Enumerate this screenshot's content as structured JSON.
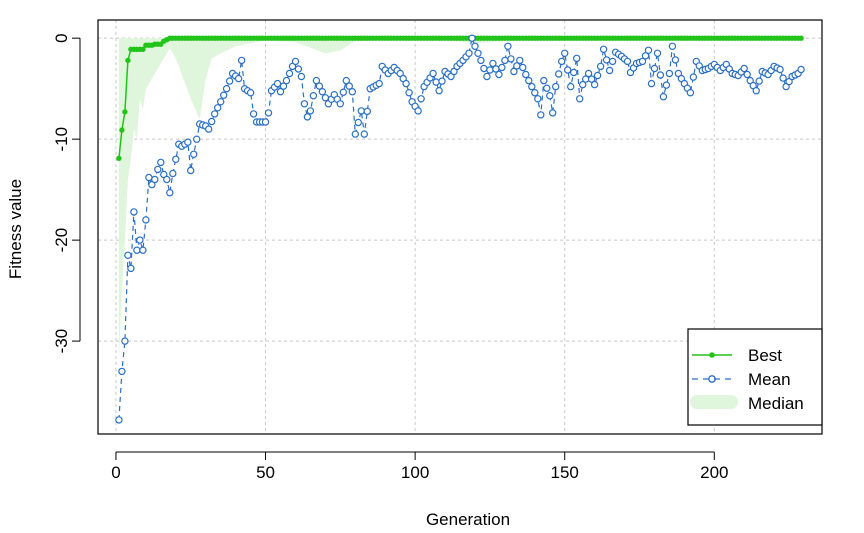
{
  "chart_data": {
    "type": "line",
    "xlabel": "Generation",
    "ylabel": "Fitness value",
    "xlim": [
      -6,
      236
    ],
    "ylim": [
      -39.2,
      1.8
    ],
    "xticks": [
      0,
      50,
      100,
      150,
      200
    ],
    "yticks": [
      0,
      -10,
      -20,
      -30
    ],
    "grid": true,
    "legend_position": "bottom-right",
    "colors": {
      "best": "#22c41a",
      "mean": "#2a6fc4",
      "median": "#dff5dc"
    },
    "legend": [
      {
        "key": "best",
        "label": "Best"
      },
      {
        "key": "mean",
        "label": "Mean"
      },
      {
        "key": "median",
        "label": "Median"
      }
    ],
    "best_anchors": [
      [
        1,
        -11.9
      ],
      [
        2,
        -9.1
      ],
      [
        3,
        -7.3
      ],
      [
        4,
        -2.2
      ],
      [
        5,
        -1.1
      ],
      [
        6,
        -1.1
      ],
      [
        7,
        -1.1
      ],
      [
        8,
        -1.1
      ],
      [
        9,
        -1.1
      ],
      [
        10,
        -0.7
      ],
      [
        11,
        -0.7
      ],
      [
        12,
        -0.7
      ],
      [
        13,
        -0.6
      ],
      [
        14,
        -0.6
      ],
      [
        15,
        -0.6
      ],
      [
        16,
        -0.3
      ],
      [
        17,
        -0.15
      ],
      [
        18,
        0
      ],
      [
        229,
        0
      ]
    ],
    "median_anchors": [
      [
        1,
        -32
      ],
      [
        2,
        -25
      ],
      [
        3,
        -20
      ],
      [
        4,
        -14
      ],
      [
        5,
        -12
      ],
      [
        6,
        -9
      ],
      [
        7,
        -10
      ],
      [
        8,
        -6
      ],
      [
        9,
        -7
      ],
      [
        10,
        -5
      ],
      [
        12,
        -4
      ],
      [
        14,
        -3
      ],
      [
        16,
        -2
      ],
      [
        18,
        -1
      ],
      [
        20,
        -2
      ],
      [
        25,
        -6
      ],
      [
        28,
        -8
      ],
      [
        30,
        -4
      ],
      [
        32,
        -2
      ],
      [
        35,
        -1.5
      ],
      [
        40,
        -0.8
      ],
      [
        45,
        -0.5
      ],
      [
        50,
        -0.2
      ],
      [
        60,
        -0.4
      ],
      [
        70,
        -1.5
      ],
      [
        75,
        -1.2
      ],
      [
        80,
        -0.3
      ],
      [
        90,
        -0.2
      ],
      [
        100,
        -0.1
      ],
      [
        110,
        -0.2
      ],
      [
        120,
        -0.5
      ],
      [
        130,
        -0.3
      ],
      [
        140,
        -0.2
      ],
      [
        150,
        0
      ],
      [
        229,
        0
      ]
    ],
    "mean_anchors": [
      [
        1,
        -37.8
      ],
      [
        2,
        -33
      ],
      [
        3,
        -30
      ],
      [
        4,
        -21.5
      ],
      [
        5,
        -22.8
      ],
      [
        6,
        -17.2
      ],
      [
        7,
        -21
      ],
      [
        8,
        -20
      ],
      [
        9,
        -21
      ],
      [
        10,
        -18
      ],
      [
        11,
        -13.8
      ],
      [
        12,
        -14.5
      ],
      [
        13,
        -14
      ],
      [
        14,
        -13
      ],
      [
        15,
        -12.3
      ],
      [
        16,
        -13.5
      ],
      [
        17,
        -14
      ],
      [
        18,
        -15.3
      ],
      [
        19,
        -13.4
      ],
      [
        20,
        -12
      ],
      [
        21,
        -10.5
      ],
      [
        22,
        -10.7
      ],
      [
        23,
        -10.5
      ],
      [
        24,
        -10.3
      ],
      [
        25,
        -13.1
      ],
      [
        26,
        -11.5
      ],
      [
        28,
        -8.5
      ],
      [
        30,
        -8.7
      ],
      [
        31,
        -9
      ],
      [
        33,
        -7.5
      ],
      [
        35,
        -6.3
      ],
      [
        37,
        -5
      ],
      [
        39,
        -3.5
      ],
      [
        41,
        -4
      ],
      [
        42,
        -2.2
      ],
      [
        43,
        -5
      ],
      [
        45,
        -5.4
      ],
      [
        46,
        -7.5
      ],
      [
        47,
        -8.3
      ],
      [
        50,
        -8.3
      ],
      [
        51,
        -7.4
      ],
      [
        52,
        -5.2
      ],
      [
        54,
        -4.5
      ],
      [
        55,
        -5.3
      ],
      [
        57,
        -4.2
      ],
      [
        59,
        -2.8
      ],
      [
        60,
        -2.3
      ],
      [
        62,
        -3.8
      ],
      [
        63,
        -6.5
      ],
      [
        64,
        -7.8
      ],
      [
        65,
        -7.2
      ],
      [
        67,
        -4.2
      ],
      [
        69,
        -5.3
      ],
      [
        71,
        -6.5
      ],
      [
        73,
        -5.6
      ],
      [
        75,
        -6.5
      ],
      [
        77,
        -4.2
      ],
      [
        79,
        -5.3
      ],
      [
        80,
        -9.5
      ],
      [
        82,
        -7.2
      ],
      [
        83,
        -9.5
      ],
      [
        85,
        -5
      ],
      [
        88,
        -4.5
      ],
      [
        89,
        -2.8
      ],
      [
        91,
        -3.5
      ],
      [
        93,
        -2.9
      ],
      [
        95,
        -3.5
      ],
      [
        97,
        -4.5
      ],
      [
        99,
        -6.3
      ],
      [
        101,
        -7.2
      ],
      [
        103,
        -4.8
      ],
      [
        106,
        -3.5
      ],
      [
        108,
        -5.2
      ],
      [
        110,
        -3.3
      ],
      [
        112,
        -3.8
      ],
      [
        114,
        -2.8
      ],
      [
        116,
        -2.2
      ],
      [
        118,
        -1.5
      ],
      [
        119,
        0
      ],
      [
        120,
        -0.8
      ],
      [
        122,
        -2.2
      ],
      [
        124,
        -3.8
      ],
      [
        126,
        -2.5
      ],
      [
        128,
        -3.6
      ],
      [
        130,
        -2.2
      ],
      [
        131,
        -0.8
      ],
      [
        133,
        -3.3
      ],
      [
        135,
        -2.2
      ],
      [
        137,
        -3.6
      ],
      [
        139,
        -4.8
      ],
      [
        141,
        -6
      ],
      [
        142,
        -7.6
      ],
      [
        143,
        -4.2
      ],
      [
        145,
        -5.7
      ],
      [
        146,
        -7.4
      ],
      [
        147,
        -4.8
      ],
      [
        149,
        -2.3
      ],
      [
        150,
        -1.5
      ],
      [
        152,
        -4.8
      ],
      [
        154,
        -2
      ],
      [
        155,
        -6
      ],
      [
        156,
        -4.6
      ],
      [
        158,
        -3.5
      ],
      [
        160,
        -4.6
      ],
      [
        162,
        -2.8
      ],
      [
        163,
        -1.1
      ],
      [
        165,
        -3.2
      ],
      [
        167,
        -1.4
      ],
      [
        169,
        -1.8
      ],
      [
        171,
        -2.3
      ],
      [
        172,
        -3.4
      ],
      [
        174,
        -2.5
      ],
      [
        176,
        -2.3
      ],
      [
        178,
        -1.2
      ],
      [
        179,
        -4.5
      ],
      [
        181,
        -1.5
      ],
      [
        183,
        -5.8
      ],
      [
        185,
        -3.5
      ],
      [
        186,
        -0.8
      ],
      [
        188,
        -3.5
      ],
      [
        190,
        -4.5
      ],
      [
        192,
        -5.4
      ],
      [
        194,
        -2.3
      ],
      [
        196,
        -3.2
      ],
      [
        198,
        -3
      ],
      [
        200,
        -2.6
      ],
      [
        202,
        -3.2
      ],
      [
        204,
        -2.6
      ],
      [
        206,
        -3.5
      ],
      [
        208,
        -3.7
      ],
      [
        210,
        -3
      ],
      [
        212,
        -4.2
      ],
      [
        214,
        -5.2
      ],
      [
        216,
        -3.3
      ],
      [
        218,
        -3.6
      ],
      [
        220,
        -2.8
      ],
      [
        222,
        -3.1
      ],
      [
        224,
        -4.8
      ],
      [
        226,
        -3.8
      ],
      [
        228,
        -3.5
      ],
      [
        229,
        -3.1
      ]
    ]
  }
}
